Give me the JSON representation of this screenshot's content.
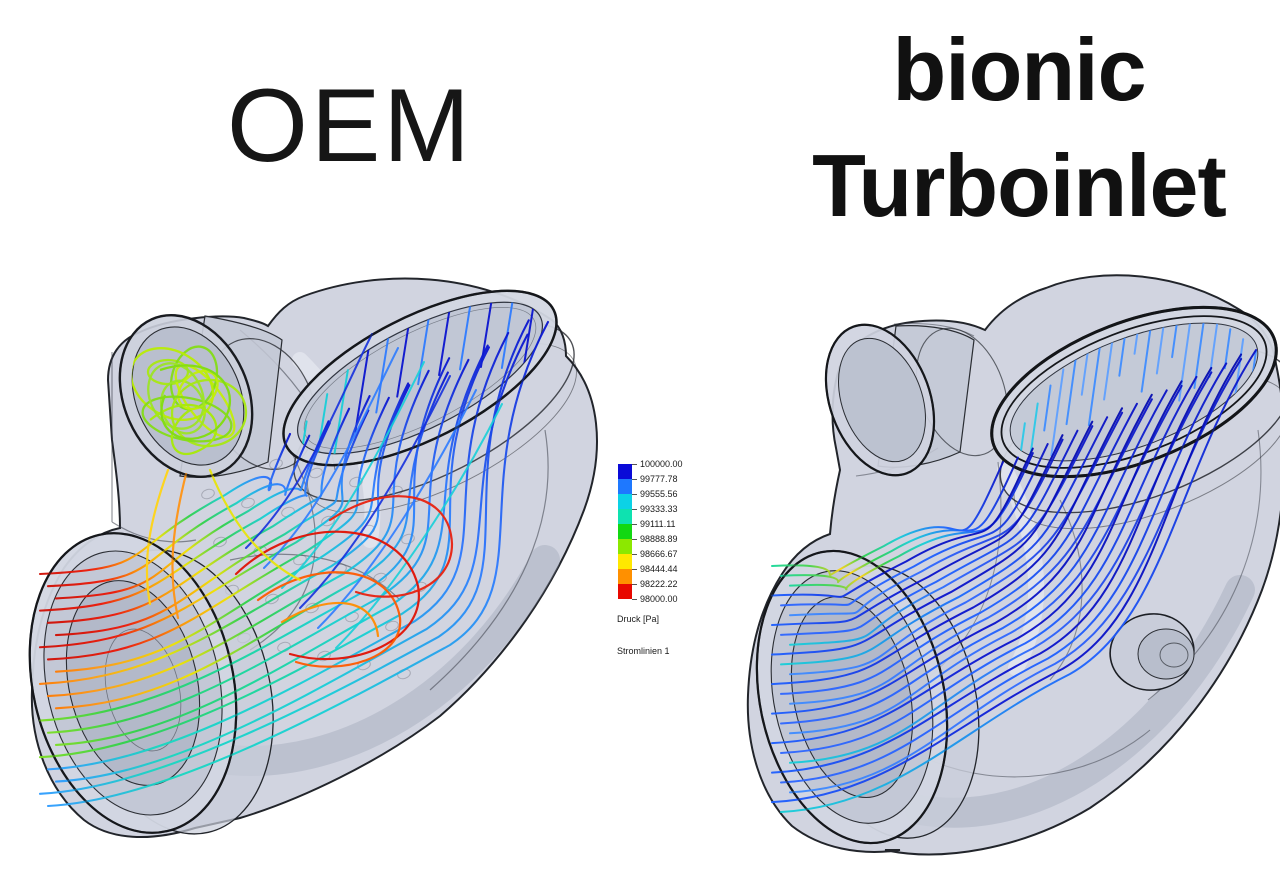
{
  "titles": {
    "oem": "OEM",
    "bionic_line1": "bionic",
    "bionic_line2": "Turboinlet"
  },
  "legend": {
    "tick_labels": [
      "100000.00",
      "99777.78",
      "99555.56",
      "99333.33",
      "99111.11",
      "98888.89",
      "98666.67",
      "98444.44",
      "98222.22",
      "98000.00"
    ],
    "block_colors": [
      "#0a0ad8",
      "#1e78ff",
      "#0cd2e6",
      "#0ee2b0",
      "#12d812",
      "#8ce800",
      "#ffe800",
      "#ff9000",
      "#e80800"
    ],
    "quantity_label": "Druck [Pa]",
    "plot_label": "Stromlinien 1"
  },
  "palette": {
    "dark_blue": "#0a14cf",
    "blue": "#2e7bff",
    "light_blue": "#3f8cff",
    "cyan": "#17cfd8",
    "teal": "#18d89a",
    "green": "#2fd24a",
    "chartreuse": "#a8e811",
    "yellow": "#ffd414",
    "orange": "#ff8a00",
    "red": "#e01204",
    "body_fill": "#c9cdda",
    "rim_fill": "#d2d6e1",
    "outline": "#15171b"
  }
}
